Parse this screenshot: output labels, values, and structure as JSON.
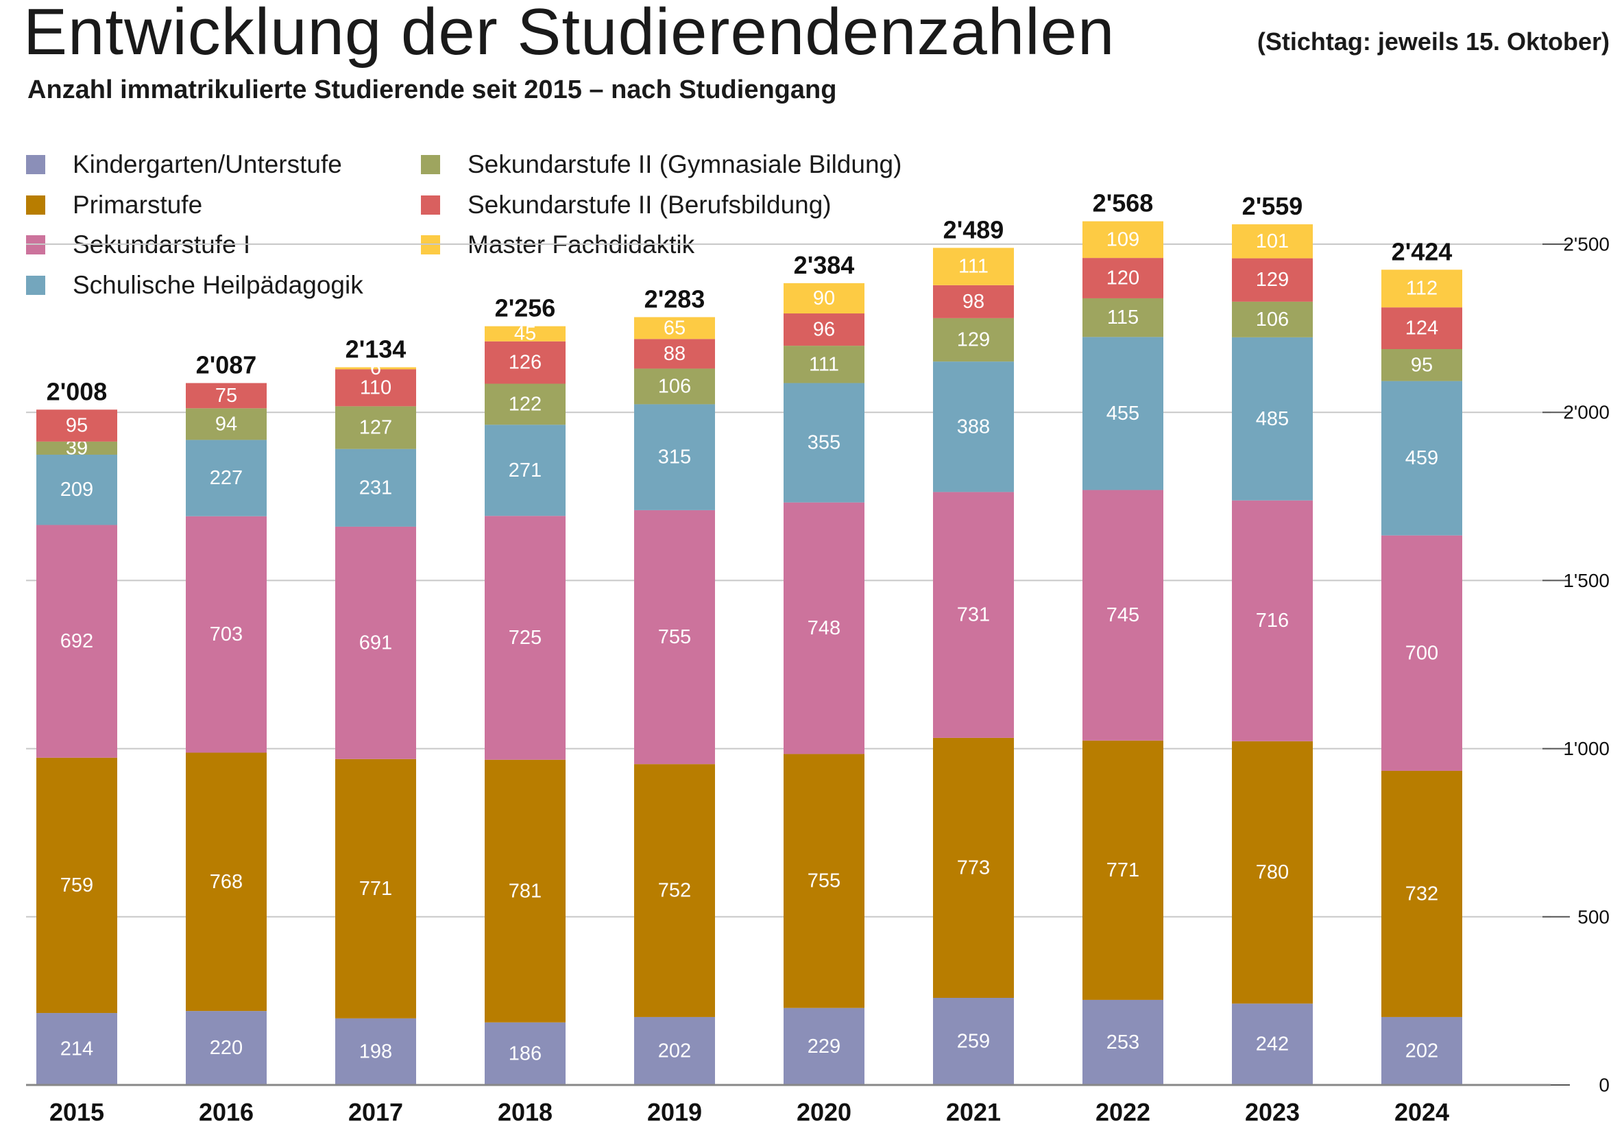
{
  "title": "Entwicklung der Studierendenzahlen",
  "subtitle": "Anzahl immatrikulierte Studierende seit 2015 – nach Studiengang",
  "note": "(Stichtag: jeweils 15. Oktober)",
  "chart_data": {
    "type": "bar",
    "stacked": true,
    "categories": [
      "2015",
      "2016",
      "2017",
      "2018",
      "2019",
      "2020",
      "2021",
      "2022",
      "2023",
      "2024"
    ],
    "ylim": [
      0,
      2500
    ],
    "yticks": [
      0,
      500,
      1000,
      1500,
      2000,
      2500
    ],
    "ytick_labels": [
      "0",
      "500",
      "1'000",
      "1'500",
      "2'000",
      "2'500"
    ],
    "grid": true,
    "legend_position": "top-left",
    "totals": [
      2008,
      2087,
      2134,
      2256,
      2283,
      2384,
      2489,
      2568,
      2559,
      2424
    ],
    "total_labels": [
      "2'008",
      "2'087",
      "2'134",
      "2'256",
      "2'283",
      "2'384",
      "2'489",
      "2'568",
      "2'559",
      "2'424"
    ],
    "series": [
      {
        "name": "Kindergarten/Unterstufe",
        "color": "#8b8fb8",
        "values": [
          214,
          220,
          198,
          186,
          202,
          229,
          259,
          253,
          242,
          202
        ]
      },
      {
        "name": "Primarstufe",
        "color": "#b87d00",
        "values": [
          759,
          768,
          771,
          781,
          752,
          755,
          773,
          771,
          780,
          732
        ]
      },
      {
        "name": "Sekundarstufe I",
        "color": "#cc739c",
        "values": [
          692,
          703,
          691,
          725,
          755,
          748,
          731,
          745,
          716,
          700
        ]
      },
      {
        "name": "Schulische Heilpädagogik",
        "color": "#74a6bd",
        "values": [
          209,
          227,
          231,
          271,
          315,
          355,
          388,
          455,
          485,
          459
        ]
      },
      {
        "name": "Sekundarstufe II (Gymnasiale Bildung)",
        "color": "#9ea55f",
        "values": [
          39,
          94,
          127,
          122,
          106,
          111,
          129,
          115,
          106,
          95
        ]
      },
      {
        "name": "Sekundarstufe II (Berufsbildung)",
        "color": "#d9605f",
        "values": [
          95,
          75,
          110,
          126,
          88,
          96,
          98,
          120,
          129,
          124
        ]
      },
      {
        "name": "Master Fachdidaktik",
        "color": "#fdcb44",
        "values": [
          null,
          null,
          6,
          45,
          65,
          90,
          111,
          109,
          101,
          112
        ]
      }
    ]
  }
}
